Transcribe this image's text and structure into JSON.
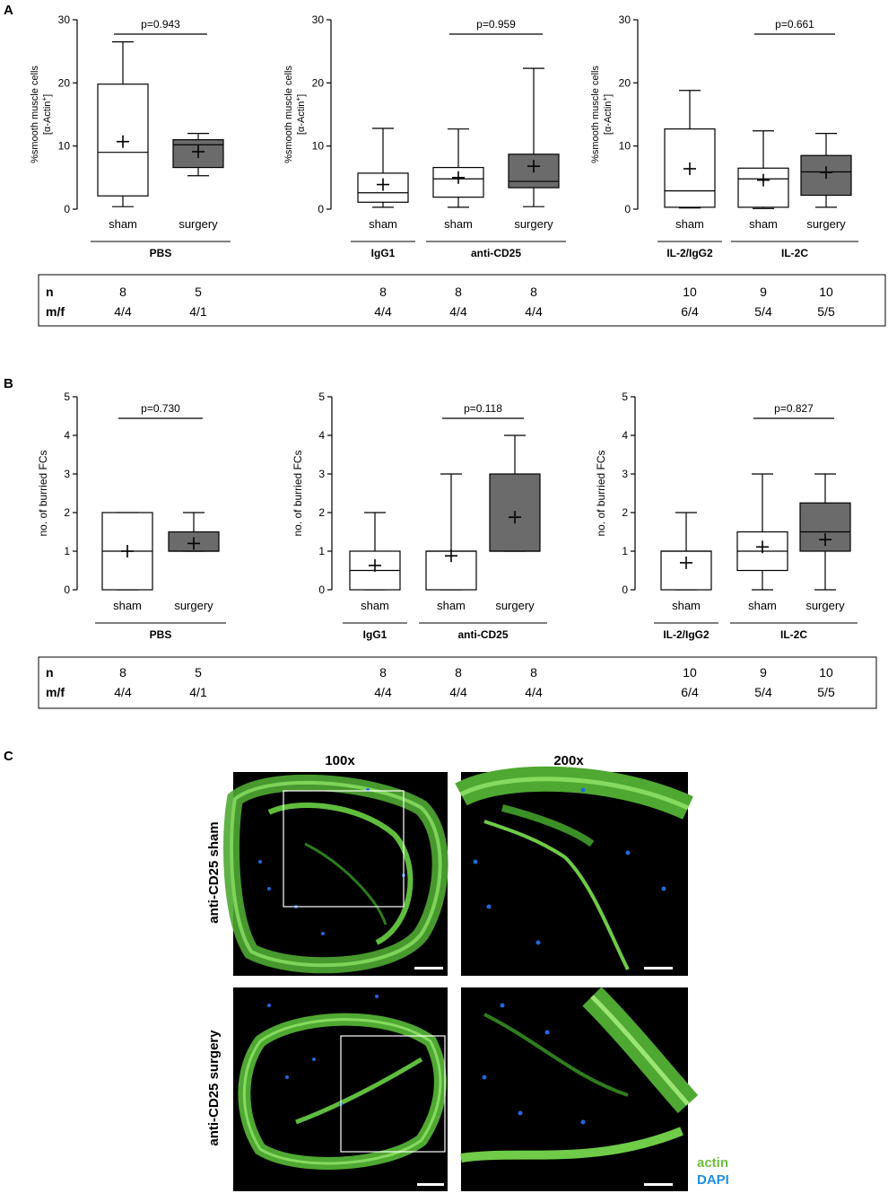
{
  "panels": {
    "A": {
      "label": "A",
      "ylabel_line1": "%smooth muscle cells",
      "ylabel_line2_prefix": "[α-Actin",
      "ylabel_line2_suffix": "]",
      "ylabel_sup": "+"
    },
    "B": {
      "label": "B",
      "ylabel": "no. of burried FCs"
    },
    "C": {
      "label": "C",
      "col_100x": "100x",
      "col_200x": "200x",
      "row_sham": "anti-CD25 sham",
      "row_surgery": "anti-CD25 surgery",
      "legend_actin": "actin",
      "legend_dapi": "DAPI"
    }
  },
  "tables": {
    "A": {
      "n_label": "n",
      "mf_label": "m/f",
      "n": [
        "8",
        "5",
        "8",
        "8",
        "8",
        "10",
        "9",
        "10"
      ],
      "mf": [
        "4/4",
        "4/1",
        "4/4",
        "4/4",
        "4/4",
        "6/4",
        "5/4",
        "5/5"
      ]
    },
    "B": {
      "n_label": "n",
      "mf_label": "m/f",
      "n": [
        "8",
        "5",
        "8",
        "8",
        "8",
        "10",
        "9",
        "10"
      ],
      "mf": [
        "4/4",
        "4/1",
        "4/4",
        "4/4",
        "4/4",
        "6/4",
        "5/4",
        "5/5"
      ]
    }
  },
  "chart_data": [
    {
      "type": "box",
      "panel": "A",
      "ylim": [
        0,
        30
      ],
      "yticks": [
        0,
        10,
        20,
        30
      ],
      "ylabel": "%smooth muscle cells [α-Actin+]",
      "categories": [
        "sham",
        "surgery"
      ],
      "groups": [
        {
          "label": "PBS",
          "span": [
            0,
            1
          ]
        }
      ],
      "pvalue": {
        "text": "p=0.943",
        "between": [
          0,
          1
        ]
      },
      "boxes": [
        {
          "category": "sham",
          "min": 0.4,
          "q1": 2.1,
          "median": 9.0,
          "q3": 19.8,
          "max": 26.5,
          "mean": 10.7,
          "fill": "#ffffff"
        },
        {
          "category": "surgery",
          "min": 5.3,
          "q1": 6.6,
          "median": 10.2,
          "q3": 11.0,
          "max": 12.0,
          "mean": 9.1,
          "fill": "#6b6b6b"
        }
      ]
    },
    {
      "type": "box",
      "panel": "A",
      "ylim": [
        0,
        30
      ],
      "yticks": [
        0,
        10,
        20,
        30
      ],
      "ylabel": "%smooth muscle cells [α-Actin+]",
      "categories": [
        "sham",
        "sham",
        "surgery"
      ],
      "groups": [
        {
          "label": "IgG1",
          "span": [
            0,
            0
          ]
        },
        {
          "label": "anti-CD25",
          "span": [
            1,
            2
          ]
        }
      ],
      "pvalue": {
        "text": "p=0.959",
        "between": [
          1,
          2
        ]
      },
      "boxes": [
        {
          "category": "sham",
          "min": 0.3,
          "q1": 1.1,
          "median": 2.6,
          "q3": 5.7,
          "max": 12.8,
          "mean": 3.9,
          "fill": "#ffffff"
        },
        {
          "category": "sham",
          "min": 0.3,
          "q1": 1.9,
          "median": 4.8,
          "q3": 6.6,
          "max": 12.7,
          "mean": 5.0,
          "fill": "#ffffff"
        },
        {
          "category": "surgery",
          "min": 0.4,
          "q1": 3.4,
          "median": 4.4,
          "q3": 8.7,
          "max": 22.3,
          "mean": 6.8,
          "fill": "#6b6b6b"
        }
      ]
    },
    {
      "type": "box",
      "panel": "A",
      "ylim": [
        0,
        30
      ],
      "yticks": [
        0,
        10,
        20,
        30
      ],
      "ylabel": "%smooth muscle cells [α-Actin+]",
      "categories": [
        "sham",
        "sham",
        "surgery"
      ],
      "groups": [
        {
          "label": "IL-2/IgG2",
          "span": [
            0,
            0
          ]
        },
        {
          "label": "IL-2C",
          "span": [
            1,
            2
          ]
        }
      ],
      "pvalue": {
        "text": "p=0.661",
        "between": [
          1,
          2
        ]
      },
      "boxes": [
        {
          "category": "sham",
          "min": 0.2,
          "q1": 0.3,
          "median": 2.9,
          "q3": 12.7,
          "max": 18.8,
          "mean": 6.4,
          "fill": "#ffffff"
        },
        {
          "category": "sham",
          "min": 0.1,
          "q1": 0.3,
          "median": 4.8,
          "q3": 6.5,
          "max": 12.4,
          "mean": 4.6,
          "fill": "#ffffff"
        },
        {
          "category": "surgery",
          "min": 0.3,
          "q1": 2.2,
          "median": 5.9,
          "q3": 8.5,
          "max": 12.0,
          "mean": 5.8,
          "fill": "#6b6b6b"
        }
      ]
    },
    {
      "type": "box",
      "panel": "B",
      "ylim": [
        0,
        5
      ],
      "yticks": [
        0,
        1,
        2,
        3,
        4,
        5
      ],
      "ylabel": "no. of burried FCs",
      "categories": [
        "sham",
        "surgery"
      ],
      "groups": [
        {
          "label": "PBS",
          "span": [
            0,
            1
          ]
        }
      ],
      "pvalue": {
        "text": "p=0.730",
        "between": [
          0,
          1
        ]
      },
      "boxes": [
        {
          "category": "sham",
          "min": 0,
          "q1": 0,
          "median": 1,
          "q3": 2,
          "max": 2,
          "mean": 1.0,
          "fill": "#ffffff"
        },
        {
          "category": "surgery",
          "min": 1,
          "q1": 1,
          "median": 1,
          "q3": 1.5,
          "max": 2,
          "mean": 1.2,
          "fill": "#6b6b6b"
        }
      ]
    },
    {
      "type": "box",
      "panel": "B",
      "ylim": [
        0,
        5
      ],
      "yticks": [
        0,
        1,
        2,
        3,
        4,
        5
      ],
      "ylabel": "no. of burried FCs",
      "categories": [
        "sham",
        "sham",
        "surgery"
      ],
      "groups": [
        {
          "label": "IgG1",
          "span": [
            0,
            0
          ]
        },
        {
          "label": "anti-CD25",
          "span": [
            1,
            2
          ]
        }
      ],
      "pvalue": {
        "text": "p=0.118",
        "between": [
          1,
          2
        ]
      },
      "boxes": [
        {
          "category": "sham",
          "min": 0,
          "q1": 0,
          "median": 0.5,
          "q3": 1,
          "max": 2,
          "mean": 0.63,
          "fill": "#ffffff"
        },
        {
          "category": "sham",
          "min": 0,
          "q1": 0,
          "median": 1,
          "q3": 1,
          "max": 3,
          "mean": 0.88,
          "fill": "#ffffff"
        },
        {
          "category": "surgery",
          "min": 1,
          "q1": 1,
          "median": 1,
          "q3": 3,
          "max": 4,
          "mean": 1.88,
          "fill": "#6b6b6b"
        }
      ]
    },
    {
      "type": "box",
      "panel": "B",
      "ylim": [
        0,
        5
      ],
      "yticks": [
        0,
        1,
        2,
        3,
        4,
        5
      ],
      "ylabel": "no. of burried FCs",
      "categories": [
        "sham",
        "sham",
        "surgery"
      ],
      "groups": [
        {
          "label": "IL-2/IgG2",
          "span": [
            0,
            0
          ]
        },
        {
          "label": "IL-2C",
          "span": [
            1,
            2
          ]
        }
      ],
      "pvalue": {
        "text": "p=0.827",
        "between": [
          1,
          2
        ]
      },
      "boxes": [
        {
          "category": "sham",
          "min": 0,
          "q1": 0,
          "median": 1,
          "q3": 1,
          "max": 2,
          "mean": 0.7,
          "fill": "#ffffff"
        },
        {
          "category": "sham",
          "min": 0,
          "q1": 0.5,
          "median": 1,
          "q3": 1.5,
          "max": 3,
          "mean": 1.11,
          "fill": "#ffffff"
        },
        {
          "category": "surgery",
          "min": 0,
          "q1": 1,
          "median": 1.5,
          "q3": 2.25,
          "max": 3,
          "mean": 1.3,
          "fill": "#6b6b6b"
        }
      ]
    }
  ],
  "colors": {
    "box_surgery": "#6b6b6b",
    "box_sham": "#ffffff",
    "actin": "#5db43a",
    "dapi": "#1f8fe0",
    "micro_bg": "#000000"
  }
}
